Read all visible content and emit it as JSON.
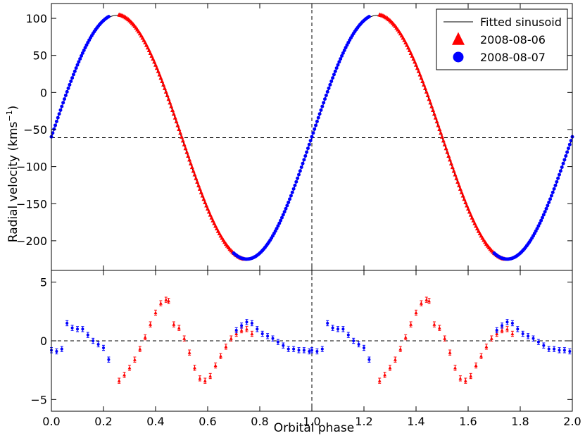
{
  "chart_data": [
    {
      "type": "line",
      "panel": "top",
      "xlabel": "",
      "ylabel": "Radial velocity (kms",
      "ylabel_sup": "−1",
      "ylabel_end": ")",
      "xlim": [
        0.0,
        2.0
      ],
      "ylim": [
        -240,
        120
      ],
      "yticks": [
        100,
        50,
        0,
        -50,
        -100,
        -150,
        -200
      ],
      "ytick_labels": [
        "100",
        "50",
        "0",
        "−50",
        "−100",
        "−150",
        "−200"
      ],
      "vline_x": 1.0,
      "hline_y": -61,
      "model": {
        "gamma": -61,
        "amplitude": 165,
        "phase_of_max": 0.25
      },
      "legend": {
        "placement": "top-right",
        "entries": [
          {
            "label": "Fitted sinusoid",
            "marker": "line",
            "color": "#000000"
          },
          {
            "label": "2008-08-06",
            "marker": "triangle",
            "color": "#ff0000"
          },
          {
            "label": "2008-08-07",
            "marker": "circle",
            "color": "#0000ff"
          }
        ]
      },
      "series": [
        {
          "name": "2008-08-06",
          "color": "#ff0000",
          "marker": "triangle",
          "phase_ranges": [
            [
              0.26,
              0.44
            ],
            [
              0.445,
              0.74
            ],
            [
              1.26,
              1.44
            ],
            [
              1.445,
              1.74
            ]
          ],
          "step": 0.005
        },
        {
          "name": "2008-08-07",
          "color": "#0000ff",
          "marker": "circle",
          "phase_ranges": [
            [
              0.0,
              0.22
            ],
            [
              0.7,
              1.0
            ],
            [
              1.0,
              1.22
            ],
            [
              1.7,
              2.0
            ]
          ],
          "step": 0.005
        }
      ]
    },
    {
      "type": "scatter",
      "panel": "bottom",
      "xlabel": "Orbital phase",
      "ylabel": "",
      "xlim": [
        0.0,
        2.0
      ],
      "ylim": [
        -6,
        6
      ],
      "xticks": [
        0.0,
        0.2,
        0.4,
        0.6,
        0.8,
        1.0,
        1.2,
        1.4,
        1.6,
        1.8,
        2.0
      ],
      "xtick_labels": [
        "0.0",
        "0.2",
        "0.4",
        "0.6",
        "0.8",
        "1.0",
        "1.2",
        "1.4",
        "1.6",
        "1.8",
        "2.0"
      ],
      "yticks": [
        5,
        0,
        -5
      ],
      "ytick_labels": [
        "5",
        "0",
        "−5"
      ],
      "vline_x": 1.0,
      "hline_y": 0,
      "series": [
        {
          "name": "2008-08-06",
          "color": "#ff0000",
          "marker": "triangle",
          "error": 0.22,
          "points": [
            [
              0.26,
              -3.4
            ],
            [
              0.28,
              -2.9
            ],
            [
              0.3,
              -2.3
            ],
            [
              0.32,
              -1.6
            ],
            [
              0.34,
              -0.7
            ],
            [
              0.36,
              0.3
            ],
            [
              0.38,
              1.4
            ],
            [
              0.4,
              2.4
            ],
            [
              0.42,
              3.2
            ],
            [
              0.44,
              3.5
            ],
            [
              0.45,
              3.4
            ],
            [
              0.47,
              1.4
            ],
            [
              0.49,
              1.1
            ],
            [
              0.51,
              0.2
            ],
            [
              0.53,
              -1.0
            ],
            [
              0.55,
              -2.3
            ],
            [
              0.57,
              -3.2
            ],
            [
              0.59,
              -3.4
            ],
            [
              0.61,
              -3.0
            ],
            [
              0.63,
              -2.1
            ],
            [
              0.65,
              -1.3
            ],
            [
              0.67,
              -0.5
            ],
            [
              0.69,
              0.2
            ],
            [
              0.71,
              0.6
            ],
            [
              0.73,
              0.9
            ],
            [
              0.75,
              1.0
            ],
            [
              0.77,
              0.6
            ]
          ]
        },
        {
          "name": "2008-08-07",
          "color": "#0000ff",
          "marker": "circle",
          "error": 0.22,
          "points": [
            [
              0.0,
              -0.8
            ],
            [
              0.02,
              -0.9
            ],
            [
              0.04,
              -0.7
            ],
            [
              0.06,
              1.5
            ],
            [
              0.08,
              1.1
            ],
            [
              0.1,
              1.0
            ],
            [
              0.12,
              1.0
            ],
            [
              0.14,
              0.5
            ],
            [
              0.16,
              0.0
            ],
            [
              0.18,
              -0.3
            ],
            [
              0.2,
              -0.6
            ],
            [
              0.22,
              -1.6
            ],
            [
              0.71,
              0.9
            ],
            [
              0.73,
              1.3
            ],
            [
              0.75,
              1.6
            ],
            [
              0.77,
              1.5
            ],
            [
              0.79,
              1.0
            ],
            [
              0.81,
              0.6
            ],
            [
              0.83,
              0.4
            ],
            [
              0.85,
              0.2
            ],
            [
              0.87,
              -0.1
            ],
            [
              0.89,
              -0.4
            ],
            [
              0.91,
              -0.7
            ],
            [
              0.93,
              -0.7
            ],
            [
              0.95,
              -0.8
            ],
            [
              0.97,
              -0.8
            ],
            [
              0.99,
              -0.9
            ]
          ]
        }
      ]
    }
  ]
}
